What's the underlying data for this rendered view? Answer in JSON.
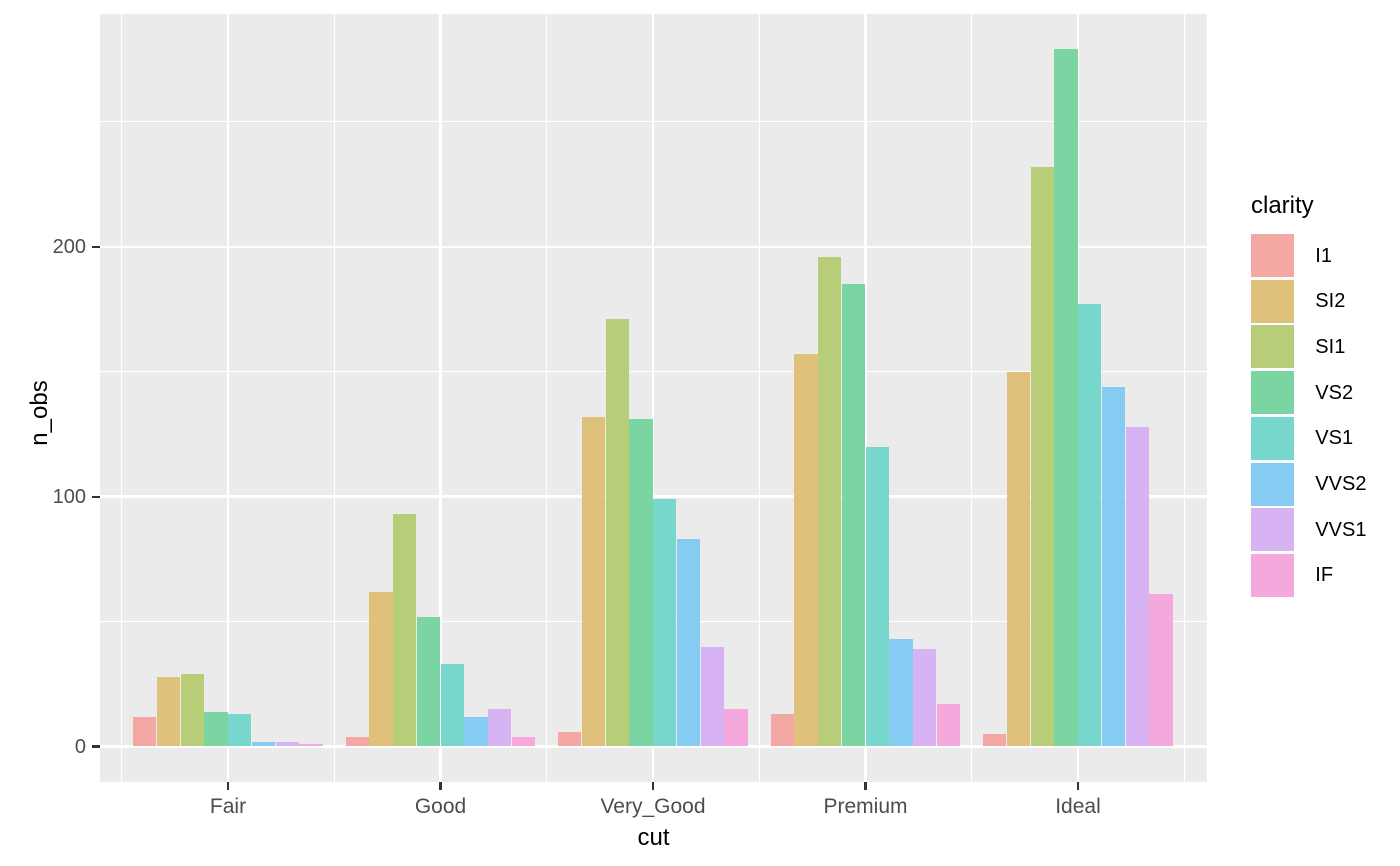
{
  "chart_data": {
    "type": "bar",
    "title": "",
    "xlabel": "cut",
    "ylabel": "n_obs",
    "legend_title": "clarity",
    "legend_position": "right",
    "grid": true,
    "categories": [
      "Fair",
      "Good",
      "Very_Good",
      "Premium",
      "Ideal"
    ],
    "series": [
      {
        "name": "I1",
        "color": "#F3A8A4",
        "values": [
          12,
          4,
          6,
          13,
          5
        ]
      },
      {
        "name": "SI2",
        "color": "#DFC17B",
        "values": [
          28,
          62,
          132,
          157,
          150
        ]
      },
      {
        "name": "SI1",
        "color": "#B7CD78",
        "values": [
          29,
          93,
          171,
          196,
          232
        ]
      },
      {
        "name": "VS2",
        "color": "#7BD5A3",
        "values": [
          14,
          52,
          131,
          185,
          279
        ]
      },
      {
        "name": "VS1",
        "color": "#78D7CC",
        "values": [
          13,
          33,
          99,
          120,
          177
        ]
      },
      {
        "name": "VVS2",
        "color": "#85CBF2",
        "values": [
          2,
          12,
          83,
          43,
          144
        ]
      },
      {
        "name": "VVS1",
        "color": "#D8B3F4",
        "values": [
          2,
          15,
          40,
          39,
          128
        ]
      },
      {
        "name": "IF",
        "color": "#F4A8DB",
        "values": [
          1,
          4,
          15,
          17,
          61
        ]
      }
    ],
    "y_ticks": [
      0,
      100,
      200
    ],
    "y_tick_labels": [
      "0",
      "100",
      "200"
    ],
    "y_minor_ticks": [
      50,
      150,
      250
    ],
    "ylim": [
      0,
      293
    ],
    "panel_background": "#EBEBEB",
    "grid_color": "#FFFFFF",
    "tick_label_color": "#4D4D4D",
    "axis_title_color": "#000000"
  }
}
